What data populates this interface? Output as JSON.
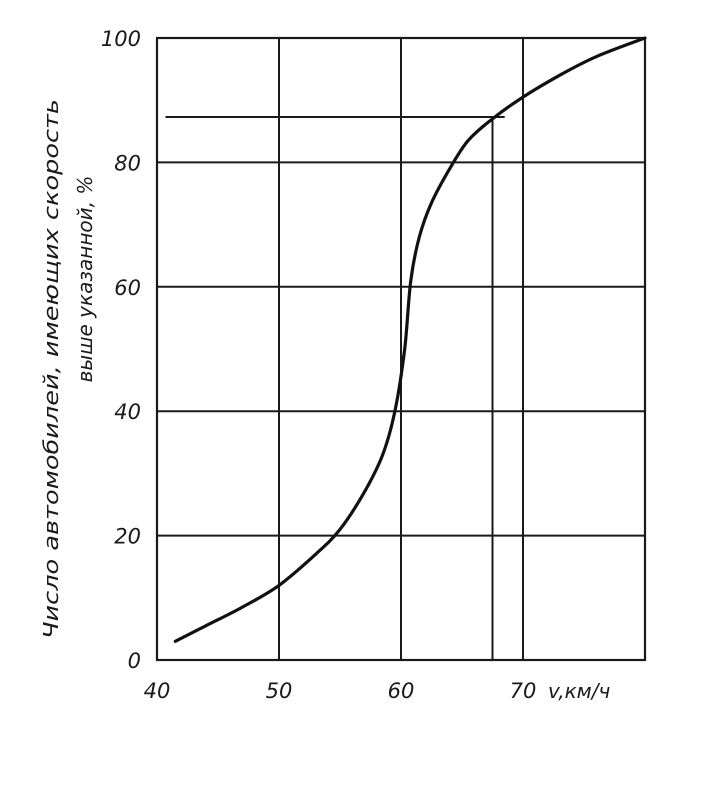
{
  "chart_data": {
    "type": "line",
    "xlabel": "v,км/ч",
    "ylabel_line1": "Число автомобилей, имеющих скорость",
    "ylabel_line2": "выше указанной, %",
    "xlim": [
      40,
      80
    ],
    "ylim": [
      0,
      100
    ],
    "x_ticks": [
      "40",
      "50",
      "60",
      "70"
    ],
    "y_ticks": [
      "0",
      "20",
      "40",
      "60",
      "80",
      "100"
    ],
    "grid": true,
    "series": [
      {
        "x": [
          41.5,
          44,
          47,
          50,
          53,
          55,
          57,
          58.5,
          59.5,
          60.3,
          60.8,
          61.5,
          62.5,
          64,
          65.5,
          67.5,
          70,
          73,
          76,
          80
        ],
        "values": [
          3,
          5.5,
          8.5,
          12,
          17,
          21,
          27,
          33,
          40,
          50,
          61,
          68,
          73.5,
          79,
          83.5,
          87,
          90.5,
          94,
          97,
          100
        ]
      }
    ]
  }
}
